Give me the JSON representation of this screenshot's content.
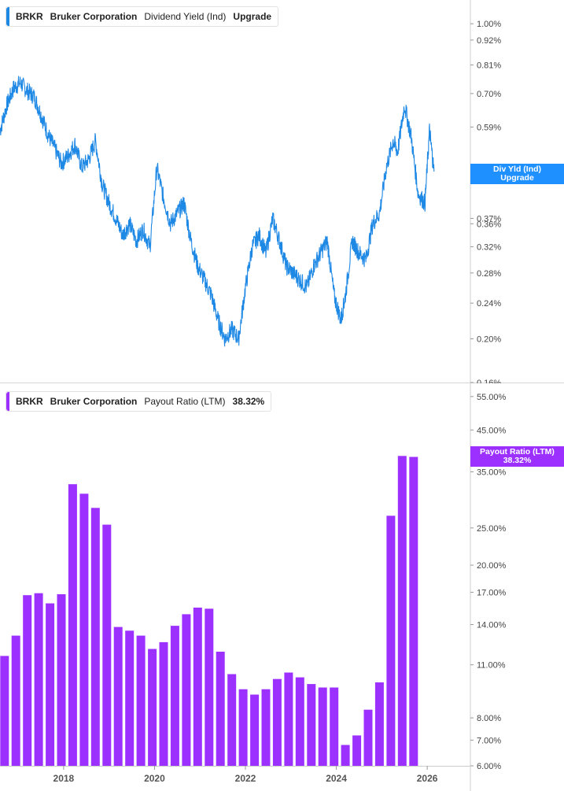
{
  "colors": {
    "line": "#1e88e5",
    "bars": "#9b30ff",
    "flag_top": "#1e90ff",
    "flag_bottom": "#9b30ff",
    "axis": "#cccccc",
    "text": "#444444"
  },
  "top_legend": {
    "ticker": "BRKR",
    "name": "Bruker Corporation",
    "metric": "Dividend Yield (Ind)",
    "value": "Upgrade"
  },
  "bottom_legend": {
    "ticker": "BRKR",
    "name": "Bruker Corporation",
    "metric": "Payout Ratio (LTM)",
    "value": "38.32%"
  },
  "top_flag": {
    "line1": "Div Yld (Ind)",
    "line2": "Upgrade"
  },
  "bottom_flag": {
    "line1": "Payout Ratio (LTM)",
    "line2": "38.32%"
  },
  "chart_data": [
    {
      "type": "line",
      "title": "Dividend Yield (Ind)",
      "yscale": "log",
      "ylim": [
        0.16,
        1.05
      ],
      "yticks": [
        "1.00%",
        "0.92%",
        "0.81%",
        "0.70%",
        "0.59%",
        "0.37%",
        "0.36%",
        "0.32%",
        "0.28%",
        "0.24%",
        "0.20%",
        "0.16%"
      ],
      "ytick_values": [
        1.0,
        0.92,
        0.81,
        0.7,
        0.59,
        0.37,
        0.36,
        0.32,
        0.28,
        0.24,
        0.2,
        0.16
      ],
      "xlim": [
        2016.6,
        2026.95
      ],
      "series": [
        {
          "x": [
            2016.6,
            2016.75,
            2016.9,
            2017.05,
            2017.2,
            2017.35,
            2017.5,
            2017.65,
            2017.8,
            2017.95,
            2018.1,
            2018.25,
            2018.4,
            2018.55,
            2018.7,
            2018.85,
            2019.0,
            2019.15,
            2019.3,
            2019.45,
            2019.6,
            2019.75,
            2019.9,
            2020.05,
            2020.2,
            2020.35,
            2020.5,
            2020.65,
            2020.8,
            2020.95,
            2021.1,
            2021.25,
            2021.4,
            2021.55,
            2021.7,
            2021.85,
            2022.0,
            2022.15,
            2022.3,
            2022.45,
            2022.6,
            2022.75,
            2022.9,
            2023.05,
            2023.2,
            2023.35,
            2023.5,
            2023.65,
            2023.8,
            2023.95,
            2024.1,
            2024.2,
            2024.35,
            2024.5,
            2024.65,
            2024.8,
            2024.95,
            2025.1,
            2025.25,
            2025.35,
            2025.5,
            2025.65,
            2025.8,
            2025.95,
            2026.05,
            2026.15
          ],
          "y": [
            0.58,
            0.66,
            0.72,
            0.74,
            0.71,
            0.69,
            0.63,
            0.57,
            0.53,
            0.49,
            0.51,
            0.54,
            0.48,
            0.5,
            0.55,
            0.44,
            0.4,
            0.37,
            0.34,
            0.36,
            0.33,
            0.35,
            0.32,
            0.48,
            0.41,
            0.36,
            0.38,
            0.4,
            0.33,
            0.29,
            0.27,
            0.25,
            0.22,
            0.2,
            0.21,
            0.2,
            0.26,
            0.32,
            0.34,
            0.31,
            0.37,
            0.33,
            0.29,
            0.28,
            0.27,
            0.26,
            0.29,
            0.31,
            0.33,
            0.25,
            0.22,
            0.25,
            0.33,
            0.31,
            0.3,
            0.36,
            0.38,
            0.48,
            0.55,
            0.52,
            0.66,
            0.56,
            0.42,
            0.4,
            0.58,
            0.47
          ]
        }
      ]
    },
    {
      "type": "bar",
      "title": "Payout Ratio (LTM)",
      "yscale": "log",
      "ylim": [
        6.0,
        56.0
      ],
      "yticks": [
        "55.00%",
        "45.00%",
        "35.00%",
        "25.00%",
        "20.00%",
        "17.00%",
        "14.00%",
        "11.00%",
        "8.00%",
        "7.00%",
        "6.00%"
      ],
      "ytick_values": [
        55,
        45,
        35,
        25,
        20,
        17,
        14,
        11,
        8,
        7,
        6
      ],
      "xlim": [
        2016.6,
        2026.95
      ],
      "xticks": [
        "2018",
        "2020",
        "2022",
        "2024",
        "2026"
      ],
      "xtick_values": [
        2018,
        2020,
        2022,
        2024,
        2026
      ],
      "x": [
        2016.7,
        2016.95,
        2017.2,
        2017.45,
        2017.7,
        2017.95,
        2018.2,
        2018.45,
        2018.7,
        2018.95,
        2019.2,
        2019.45,
        2019.7,
        2019.95,
        2020.2,
        2020.45,
        2020.7,
        2020.95,
        2021.2,
        2021.45,
        2021.7,
        2021.95,
        2022.2,
        2022.45,
        2022.7,
        2022.95,
        2023.2,
        2023.45,
        2023.7,
        2023.95,
        2024.2,
        2024.45,
        2024.7,
        2024.95,
        2025.2,
        2025.45,
        2025.7
      ],
      "values": [
        11.6,
        13.1,
        16.7,
        16.9,
        15.9,
        16.8,
        32.5,
        30.7,
        28.2,
        25.5,
        13.8,
        13.5,
        13.1,
        12.1,
        12.6,
        13.9,
        14.9,
        15.5,
        15.4,
        11.9,
        10.4,
        9.5,
        9.2,
        9.5,
        10.1,
        10.5,
        10.2,
        9.8,
        9.6,
        9.6,
        6.8,
        7.2,
        8.4,
        9.9,
        26.9,
        38.5,
        38.3
      ]
    }
  ]
}
